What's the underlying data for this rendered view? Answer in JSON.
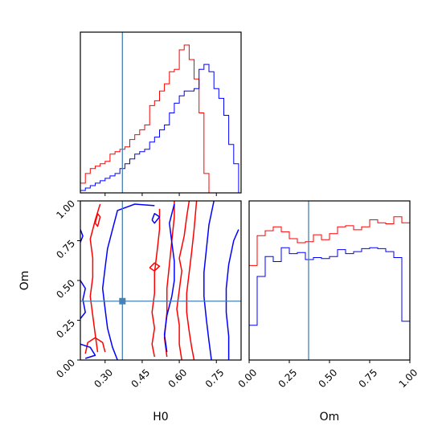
{
  "chart_data": {
    "type": "corner",
    "parameters": [
      "H0",
      "Om"
    ],
    "xlabels": {
      "H0": "H0",
      "Om": "Om"
    },
    "ylabels": {
      "Om": "Om"
    },
    "ranges": {
      "H0": [
        0.2,
        0.85
      ],
      "Om": [
        0.0,
        1.0
      ]
    },
    "ticks": {
      "H0": [
        0.3,
        0.45,
        0.6,
        0.75
      ],
      "H0_labels": [
        "0.30",
        "0.45",
        "0.60",
        "0.75"
      ],
      "Om": [
        0.0,
        0.25,
        0.5,
        0.75,
        1.0
      ],
      "Om_labels": [
        "0.00",
        "0.25",
        "0.50",
        "0.75",
        "1.00"
      ]
    },
    "truths": {
      "H0": 0.37,
      "Om": 0.37
    },
    "colors": {
      "series_1": "#ff0000",
      "series_2": "#0000ff",
      "truth": "#4682b4"
    },
    "hist_H0": {
      "bins": [
        0.2,
        0.22,
        0.24,
        0.26,
        0.28,
        0.3,
        0.32,
        0.34,
        0.36,
        0.38,
        0.4,
        0.42,
        0.44,
        0.46,
        0.48,
        0.5,
        0.52,
        0.54,
        0.56,
        0.58,
        0.6,
        0.62,
        0.64,
        0.66,
        0.68,
        0.7,
        0.72,
        0.74,
        0.76,
        0.78,
        0.8,
        0.82,
        0.84
      ],
      "series": [
        {
          "color": "#ff0000",
          "values": [
            4,
            8,
            10,
            11,
            12,
            13,
            16,
            17,
            18,
            19,
            22,
            24,
            26,
            28,
            36,
            38,
            42,
            45,
            50,
            51,
            59,
            61,
            55,
            47,
            33,
            8,
            0,
            0,
            0,
            0,
            0,
            0
          ]
        },
        {
          "color": "#0000ff",
          "values": [
            1,
            2,
            3,
            4,
            5,
            6,
            7,
            8,
            10,
            12,
            14,
            16,
            17,
            18,
            21,
            23,
            26,
            28,
            33,
            37,
            40,
            42,
            42,
            43,
            51,
            53,
            50,
            43,
            39,
            32,
            20,
            12
          ]
        }
      ]
    },
    "hist_Om": {
      "bins": [
        0.0,
        0.05,
        0.1,
        0.15,
        0.2,
        0.25,
        0.3,
        0.35,
        0.4,
        0.45,
        0.5,
        0.55,
        0.6,
        0.65,
        0.7,
        0.75,
        0.8,
        0.85,
        0.9,
        0.95,
        1.0
      ],
      "series": [
        {
          "color": "#ff0000",
          "values": [
            0.95,
            1.25,
            1.3,
            1.34,
            1.29,
            1.22,
            1.18,
            1.19,
            1.26,
            1.21,
            1.27,
            1.34,
            1.35,
            1.31,
            1.34,
            1.41,
            1.38,
            1.37,
            1.44,
            1.38
          ]
        },
        {
          "color": "#0000ff",
          "values": [
            0.35,
            0.84,
            1.04,
            0.99,
            1.13,
            1.07,
            1.08,
            1.01,
            1.03,
            1.02,
            1.04,
            1.11,
            1.07,
            1.09,
            1.12,
            1.13,
            1.12,
            1.09,
            1.03,
            0.39
          ]
        }
      ]
    },
    "contours": [
      {
        "color": "#ff0000",
        "points": [
          [
            0.66,
            0.0
          ],
          [
            0.65,
            0.08
          ],
          [
            0.64,
            0.18
          ],
          [
            0.63,
            0.3
          ],
          [
            0.63,
            0.42
          ],
          [
            0.64,
            0.55
          ],
          [
            0.65,
            0.68
          ],
          [
            0.66,
            0.82
          ],
          [
            0.67,
            1.0
          ]
        ]
      },
      {
        "color": "#ff0000",
        "points": [
          [
            0.61,
            0.0
          ],
          [
            0.6,
            0.1
          ],
          [
            0.6,
            0.22
          ],
          [
            0.59,
            0.32
          ],
          [
            0.6,
            0.44
          ],
          [
            0.61,
            0.56
          ],
          [
            0.6,
            0.64
          ],
          [
            0.62,
            0.78
          ],
          [
            0.63,
            0.9
          ],
          [
            0.64,
            1.0
          ]
        ]
      },
      {
        "color": "#ff0000",
        "points": [
          [
            0.5,
            0.02
          ],
          [
            0.49,
            0.1
          ],
          [
            0.5,
            0.2
          ],
          [
            0.49,
            0.3
          ],
          [
            0.5,
            0.42
          ],
          [
            0.5,
            0.55
          ],
          [
            0.51,
            0.68
          ],
          [
            0.52,
            0.82
          ],
          [
            0.52,
            0.95
          ]
        ]
      },
      {
        "color": "#ff0000",
        "points": [
          [
            0.55,
            0.02
          ],
          [
            0.54,
            0.14
          ],
          [
            0.55,
            0.3
          ],
          [
            0.55,
            0.45
          ],
          [
            0.56,
            0.6
          ],
          [
            0.57,
            0.75
          ],
          [
            0.58,
            0.9
          ],
          [
            0.58,
            1.0
          ]
        ]
      },
      {
        "color": "#ff0000",
        "points": [
          [
            0.27,
            0.05
          ],
          [
            0.26,
            0.16
          ],
          [
            0.25,
            0.28
          ],
          [
            0.24,
            0.4
          ],
          [
            0.25,
            0.52
          ],
          [
            0.25,
            0.64
          ],
          [
            0.24,
            0.76
          ],
          [
            0.26,
            0.88
          ],
          [
            0.28,
            0.98
          ]
        ]
      },
      {
        "color": "#ff0000",
        "points": [
          [
            0.22,
            0.04
          ],
          [
            0.23,
            0.11
          ],
          [
            0.26,
            0.14
          ],
          [
            0.29,
            0.11
          ],
          [
            0.3,
            0.05
          ]
        ]
      },
      {
        "color": "#ff0000",
        "points": [
          [
            0.26,
            0.86
          ],
          [
            0.27,
            0.92
          ],
          [
            0.28,
            0.9
          ],
          [
            0.27,
            0.84
          ],
          [
            0.26,
            0.86
          ]
        ]
      },
      {
        "color": "#ff0000",
        "points": [
          [
            0.48,
            0.58
          ],
          [
            0.5,
            0.61
          ],
          [
            0.52,
            0.59
          ],
          [
            0.5,
            0.56
          ],
          [
            0.48,
            0.58
          ]
        ]
      },
      {
        "color": "#0000ff",
        "points": [
          [
            0.73,
            0.0
          ],
          [
            0.72,
            0.12
          ],
          [
            0.71,
            0.25
          ],
          [
            0.7,
            0.4
          ],
          [
            0.7,
            0.55
          ],
          [
            0.71,
            0.7
          ],
          [
            0.72,
            0.85
          ],
          [
            0.74,
            1.0
          ]
        ]
      },
      {
        "color": "#0000ff",
        "points": [
          [
            0.8,
            0.0
          ],
          [
            0.8,
            0.15
          ],
          [
            0.79,
            0.3
          ],
          [
            0.79,
            0.45
          ],
          [
            0.8,
            0.6
          ],
          [
            0.82,
            0.75
          ],
          [
            0.84,
            0.82
          ]
        ]
      },
      {
        "color": "#0000ff",
        "points": [
          [
            0.55,
            0.05
          ],
          [
            0.54,
            0.16
          ],
          [
            0.55,
            0.28
          ],
          [
            0.57,
            0.4
          ],
          [
            0.58,
            0.5
          ],
          [
            0.58,
            0.62
          ],
          [
            0.57,
            0.74
          ],
          [
            0.56,
            0.86
          ],
          [
            0.58,
            0.98
          ]
        ]
      },
      {
        "color": "#0000ff",
        "points": [
          [
            0.35,
            0.0
          ],
          [
            0.33,
            0.08
          ],
          [
            0.31,
            0.2
          ],
          [
            0.3,
            0.32
          ],
          [
            0.29,
            0.45
          ],
          [
            0.3,
            0.58
          ],
          [
            0.31,
            0.7
          ],
          [
            0.33,
            0.82
          ],
          [
            0.35,
            0.94
          ],
          [
            0.42,
            0.98
          ],
          [
            0.5,
            0.97
          ]
        ]
      },
      {
        "color": "#0000ff",
        "points": [
          [
            0.2,
            0.82
          ],
          [
            0.21,
            0.78
          ],
          [
            0.2,
            0.74
          ]
        ]
      },
      {
        "color": "#0000ff",
        "points": [
          [
            0.2,
            0.5
          ],
          [
            0.22,
            0.45
          ],
          [
            0.21,
            0.38
          ],
          [
            0.22,
            0.3
          ],
          [
            0.2,
            0.26
          ]
        ]
      },
      {
        "color": "#0000ff",
        "points": [
          [
            0.2,
            0.1
          ],
          [
            0.24,
            0.08
          ],
          [
            0.26,
            0.03
          ],
          [
            0.22,
            0.01
          ]
        ]
      },
      {
        "color": "#0000ff",
        "points": [
          [
            0.49,
            0.88
          ],
          [
            0.5,
            0.92
          ],
          [
            0.52,
            0.9
          ],
          [
            0.5,
            0.86
          ],
          [
            0.49,
            0.88
          ]
        ]
      }
    ]
  }
}
